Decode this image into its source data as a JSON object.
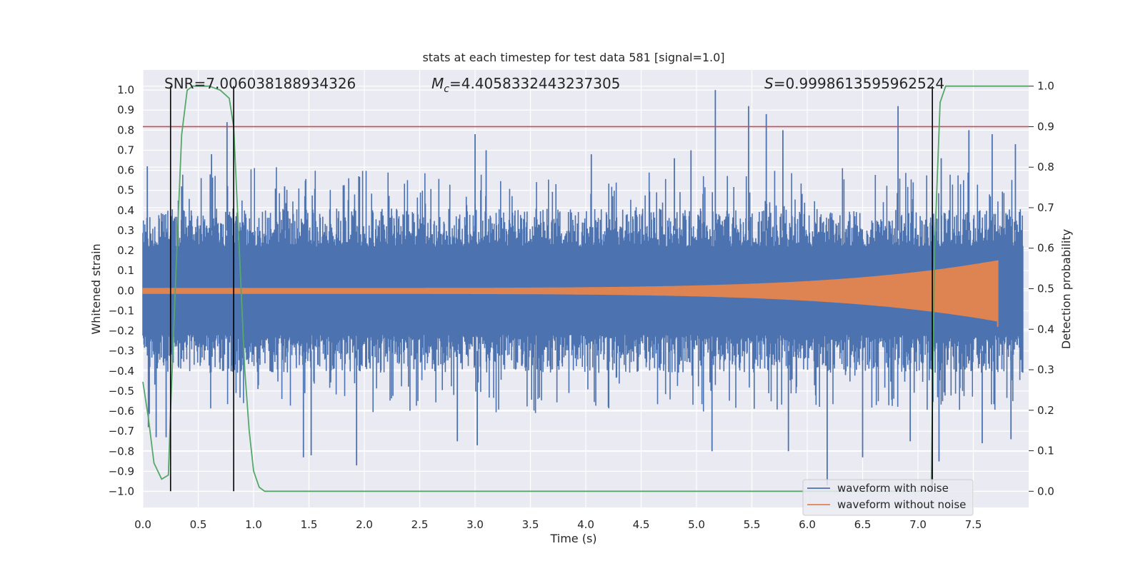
{
  "chart_data": {
    "type": "line",
    "title": "stats at each timestep for test data 581 [signal=1.0]",
    "xlabel": "Time (s)",
    "ylabel": "Whitened strain",
    "y2label": "Detection probability",
    "xlim": [
      0.0,
      8.0
    ],
    "ylim": [
      -1.08,
      1.1
    ],
    "y2lim": [
      -0.04,
      1.04
    ],
    "xticks": [
      "0.0",
      "0.5",
      "1.0",
      "1.5",
      "2.0",
      "2.5",
      "3.0",
      "3.5",
      "4.0",
      "4.5",
      "5.0",
      "5.5",
      "6.0",
      "6.5",
      "7.0",
      "7.5"
    ],
    "yticks": [
      "1.0",
      "0.9",
      "0.8",
      "0.7",
      "0.6",
      "0.5",
      "0.4",
      "0.3",
      "0.2",
      "0.1",
      "0.0",
      "−0.1",
      "−0.2",
      "−0.3",
      "−0.4",
      "−0.5",
      "−0.6",
      "−0.7",
      "−0.8",
      "−0.9",
      "−1.0"
    ],
    "y2ticks": [
      "1.0",
      "0.9",
      "0.8",
      "0.7",
      "0.6",
      "0.5",
      "0.4",
      "0.3",
      "0.2",
      "0.1",
      "0.0"
    ],
    "grid": true,
    "annotations": {
      "snr": "SNR=7.006038188934326",
      "mc_symbol": "M",
      "mc_sub": "c",
      "mc_value": "=4.4058332443237305",
      "s_symbol": "S",
      "s_value": "=0.9998613595962524"
    },
    "threshold_y2": 0.9,
    "vertical_lines_x": [
      0.25,
      0.82,
      7.13
    ],
    "series": [
      {
        "name": "waveform with noise",
        "color": "#4c72b0",
        "description_values": "dense noise, envelope roughly ±0.4 with spikes up to 1.0 and down to -0.97"
      },
      {
        "name": "waveform without noise",
        "color": "#dd8452",
        "chirp_end_time": 7.72,
        "chirp_peak_amplitude": 0.15
      },
      {
        "name": "detection probability",
        "color": "#55a868",
        "axis": "right",
        "x": [
          0.0,
          0.05,
          0.1,
          0.17,
          0.23,
          0.25,
          0.3,
          0.35,
          0.4,
          0.45,
          0.6,
          0.7,
          0.78,
          0.82,
          0.87,
          0.92,
          0.96,
          1.0,
          1.05,
          1.1,
          6.0,
          7.0,
          7.12,
          7.15,
          7.2,
          7.25,
          8.0
        ],
        "y": [
          0.27,
          0.18,
          0.07,
          0.03,
          0.04,
          0.2,
          0.55,
          0.88,
          0.99,
          1.0,
          1.0,
          0.99,
          0.97,
          0.9,
          0.6,
          0.3,
          0.15,
          0.05,
          0.01,
          0.0,
          0.0,
          0.0,
          0.005,
          0.6,
          0.96,
          1.0,
          1.0
        ]
      }
    ],
    "noise_spikes": {
      "up": [
        [
          0.04,
          0.62
        ],
        [
          0.35,
          0.52
        ],
        [
          0.62,
          0.68
        ],
        [
          0.76,
          0.84
        ],
        [
          1.28,
          0.52
        ],
        [
          1.95,
          0.57
        ],
        [
          3.0,
          0.78
        ],
        [
          3.1,
          0.7
        ],
        [
          4.05,
          0.68
        ],
        [
          4.8,
          0.66
        ],
        [
          4.95,
          0.7
        ],
        [
          5.17,
          1.0
        ],
        [
          5.47,
          0.92
        ],
        [
          5.63,
          0.88
        ],
        [
          5.78,
          0.8
        ],
        [
          6.82,
          0.92
        ],
        [
          7.21,
          0.66
        ],
        [
          7.46,
          0.8
        ],
        [
          7.67,
          0.78
        ],
        [
          7.88,
          0.73
        ]
      ],
      "down": [
        [
          0.05,
          -0.68
        ],
        [
          0.12,
          -0.73
        ],
        [
          0.21,
          -0.73
        ],
        [
          1.45,
          -0.83
        ],
        [
          1.52,
          -0.82
        ],
        [
          1.93,
          -0.87
        ],
        [
          2.84,
          -0.75
        ],
        [
          3.02,
          -0.77
        ],
        [
          5.14,
          -0.8
        ],
        [
          5.83,
          -0.8
        ],
        [
          6.18,
          -0.97
        ],
        [
          6.5,
          -0.83
        ],
        [
          7.19,
          -0.85
        ],
        [
          7.58,
          -0.76
        ],
        [
          7.84,
          -0.74
        ],
        [
          6.93,
          -0.75
        ]
      ]
    }
  }
}
